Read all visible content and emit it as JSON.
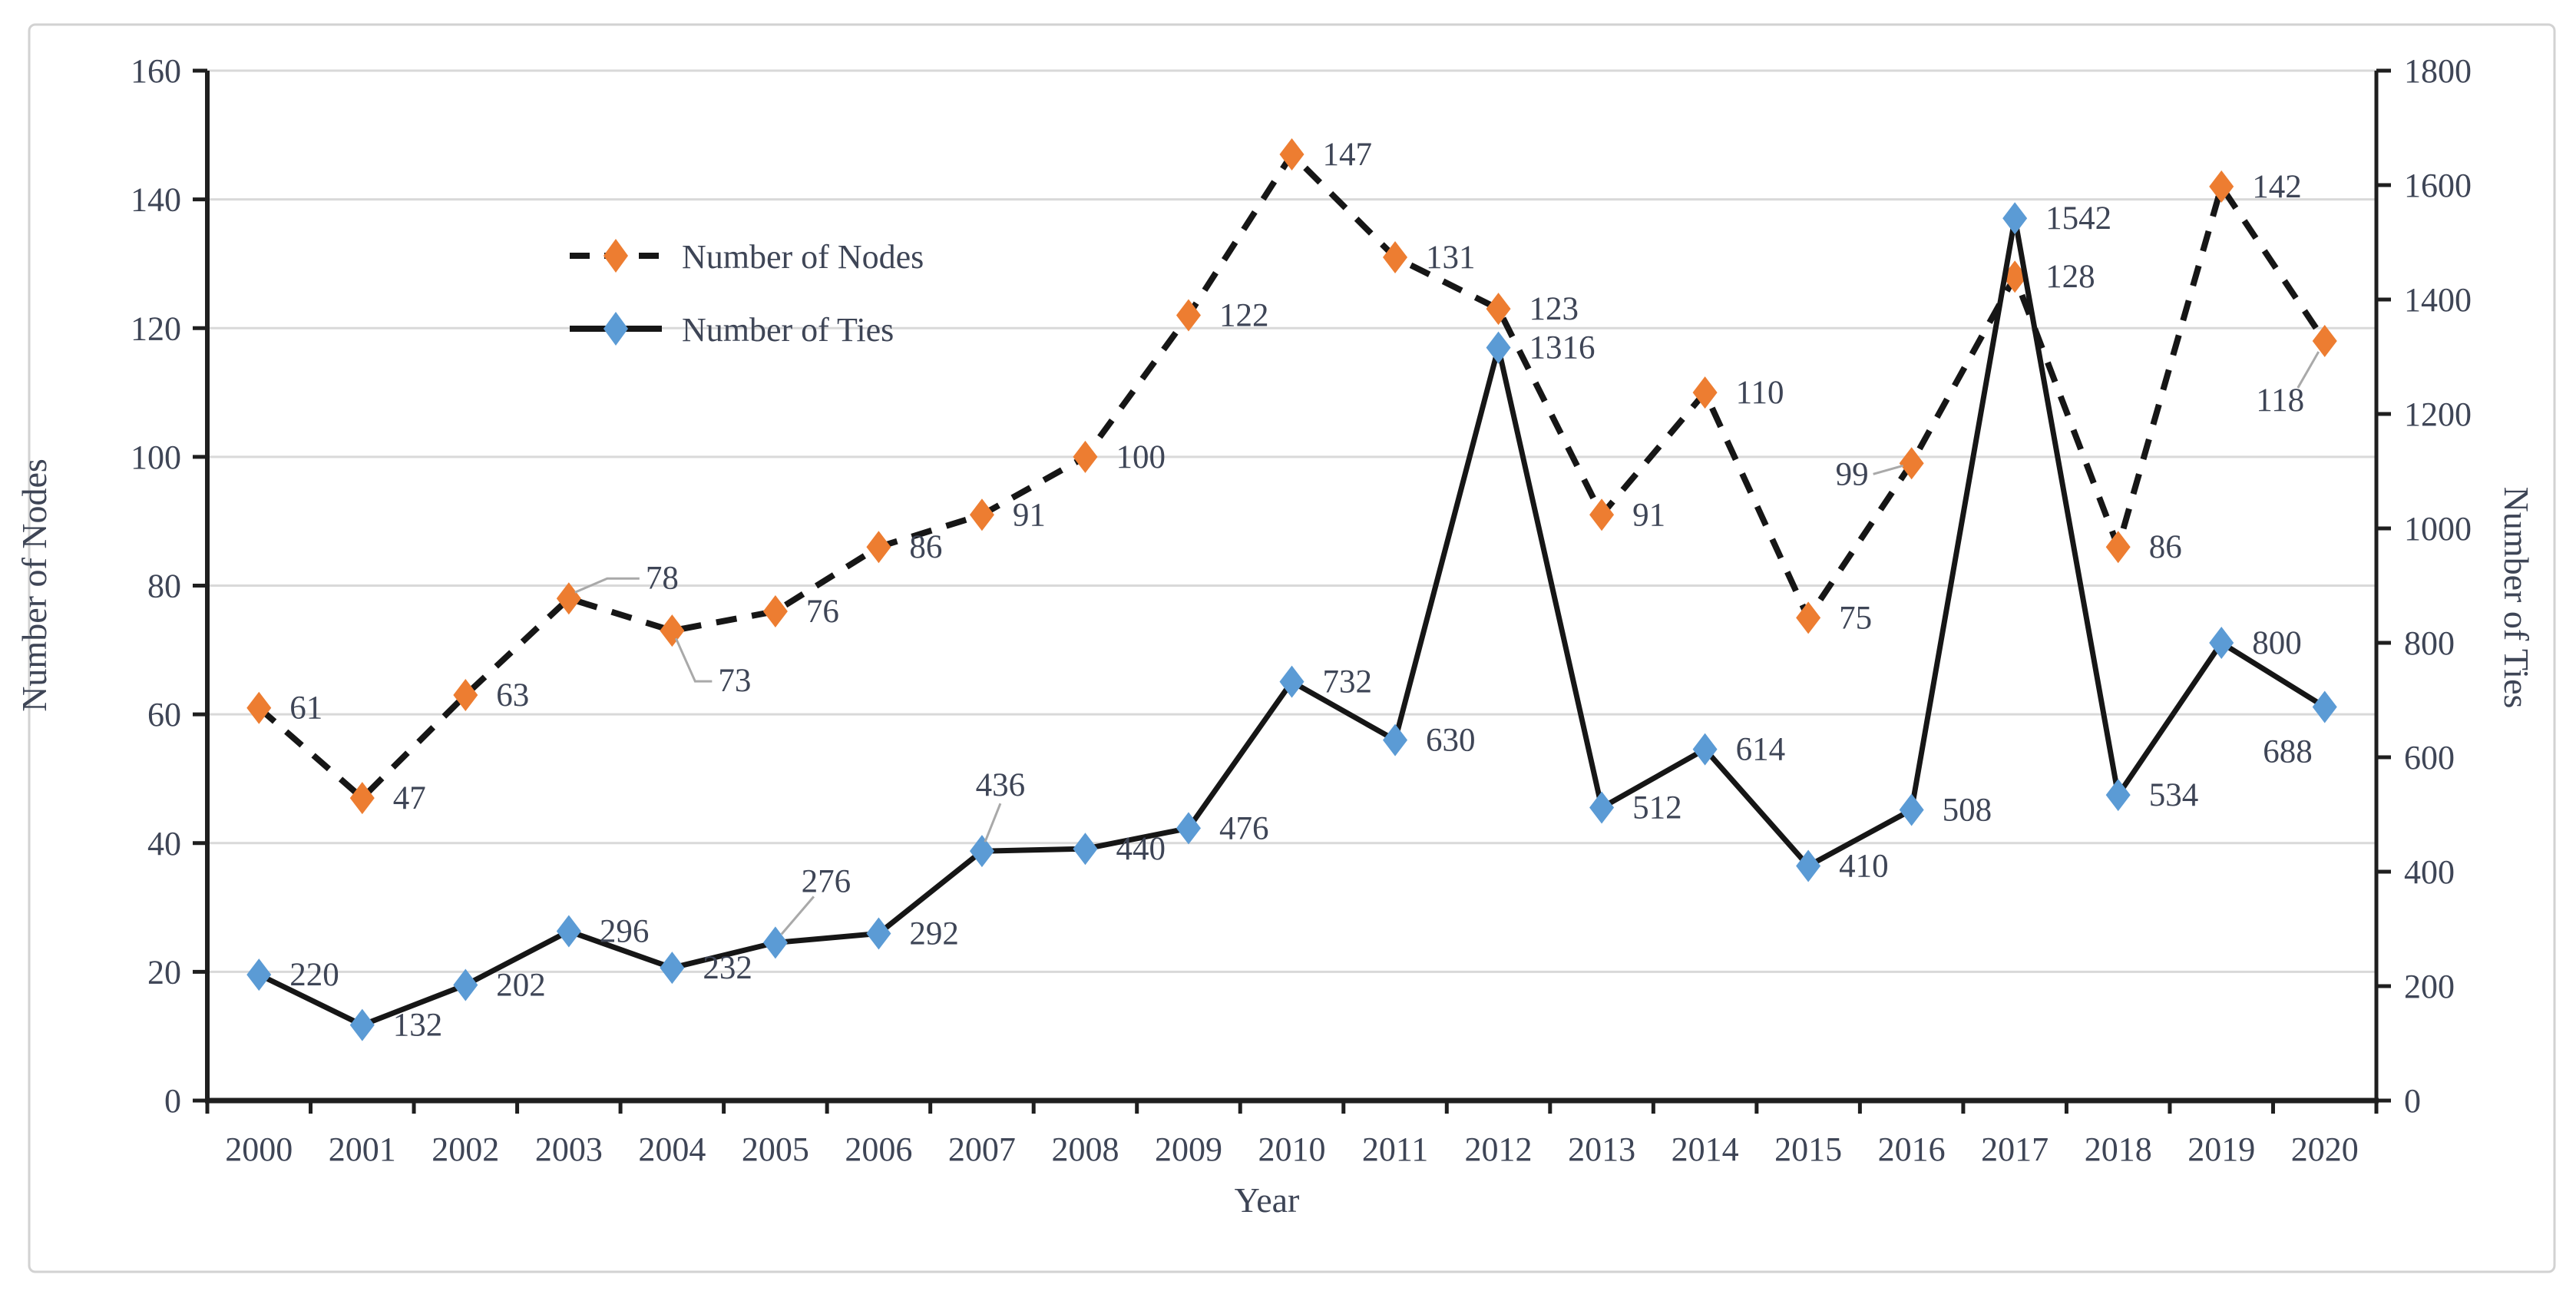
{
  "chart_data": {
    "type": "line",
    "title": "",
    "xlabel": "Year",
    "ylabel_left": "Number of Nodes",
    "ylabel_right": "Number of Ties",
    "categories": [
      "2000",
      "2001",
      "2002",
      "2003",
      "2004",
      "2005",
      "2006",
      "2007",
      "2008",
      "2009",
      "2010",
      "2011",
      "2012",
      "2013",
      "2014",
      "2015",
      "2016",
      "2017",
      "2018",
      "2019",
      "2020"
    ],
    "series": [
      {
        "name": "Number of Nodes",
        "axis": "left",
        "marker": "diamond",
        "color": "#ED7D31",
        "line_style": "dashed",
        "line_color": "#161616",
        "values": [
          61,
          47,
          63,
          78,
          73,
          76,
          86,
          91,
          100,
          122,
          147,
          131,
          123,
          91,
          110,
          75,
          99,
          128,
          86,
          142,
          118
        ]
      },
      {
        "name": "Number of Ties",
        "axis": "right",
        "marker": "diamond",
        "color": "#5B9BD5",
        "line_style": "solid",
        "line_color": "#161616",
        "values": [
          220,
          132,
          202,
          296,
          232,
          276,
          292,
          436,
          440,
          476,
          732,
          630,
          1316,
          512,
          614,
          410,
          508,
          1542,
          534,
          800,
          688
        ]
      }
    ],
    "axis_left": {
      "min": 0,
      "max": 160,
      "step": 20,
      "tick_labels": [
        "0",
        "20",
        "40",
        "60",
        "80",
        "100",
        "120",
        "140",
        "160"
      ]
    },
    "axis_right": {
      "min": 0,
      "max": 1800,
      "step": 200,
      "tick_labels": [
        "0",
        "200",
        "400",
        "600",
        "800",
        "1000",
        "1200",
        "1400",
        "1600",
        "1800"
      ]
    },
    "grid": true,
    "legend_position": "inside-top-left"
  },
  "colors": {
    "grid": "#d9d9d9",
    "axis": "#1f1f1f",
    "leader": "#a9a9a9",
    "frame_border": "#d2d2d2",
    "background": "#ffffff"
  }
}
